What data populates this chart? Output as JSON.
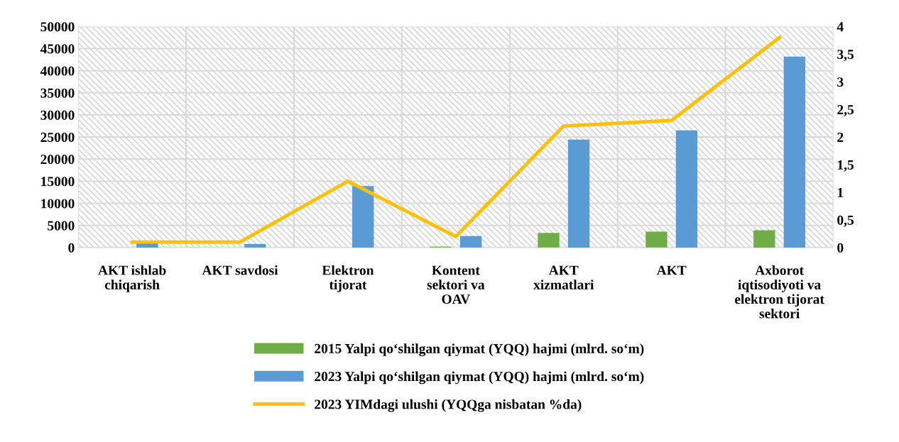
{
  "chart_data": {
    "type": "bar",
    "categories": [
      "AKT ishlab\nchiqarish",
      "AKT savdosi",
      "Elektron\ntijorat",
      "Kontent\nsektori va\nOAV",
      "AKT\nxizmatlari",
      "AKT",
      "Axborot\niqtisodiyoti va\nelektron tijorat\nsektori"
    ],
    "series": [
      {
        "name": "2015 Yalpi qo‘shilgan qiymat (YQQ) hajmi (mlrd. so‘m)",
        "color": "#70ad47",
        "values": [
          0,
          0,
          0,
          200,
          3300,
          3600,
          3900
        ]
      },
      {
        "name": "2023 Yalpi qo‘shilgan qiymat (YQQ) hajmi (mlrd. so‘m)",
        "color": "#5b9bd5",
        "values": [
          1000,
          800,
          13900,
          2600,
          24400,
          26500,
          43200
        ]
      },
      {
        "name": "2023 YIMdagi ulushi (YQQga nisbatan %da)",
        "color": "#ffc000",
        "type": "line",
        "axis": "y2",
        "values": [
          0.1,
          0.1,
          1.2,
          0.2,
          2.2,
          2.3,
          3.8
        ]
      }
    ],
    "ylim": [
      0,
      50000
    ],
    "yticks": [
      0,
      5000,
      10000,
      15000,
      20000,
      25000,
      30000,
      35000,
      40000,
      45000,
      50000
    ],
    "y2lim": [
      0,
      4
    ],
    "y2ticks": [
      0,
      {
        "value": 0.5,
        "label": "0,5"
      },
      1,
      {
        "value": 1.5,
        "label": "1,5"
      },
      2,
      {
        "value": 2.5,
        "label": "2,5"
      },
      3,
      {
        "value": 3.5,
        "label": "3,5"
      },
      4
    ],
    "grid": true,
    "legend": "bottom",
    "marker": "none"
  }
}
